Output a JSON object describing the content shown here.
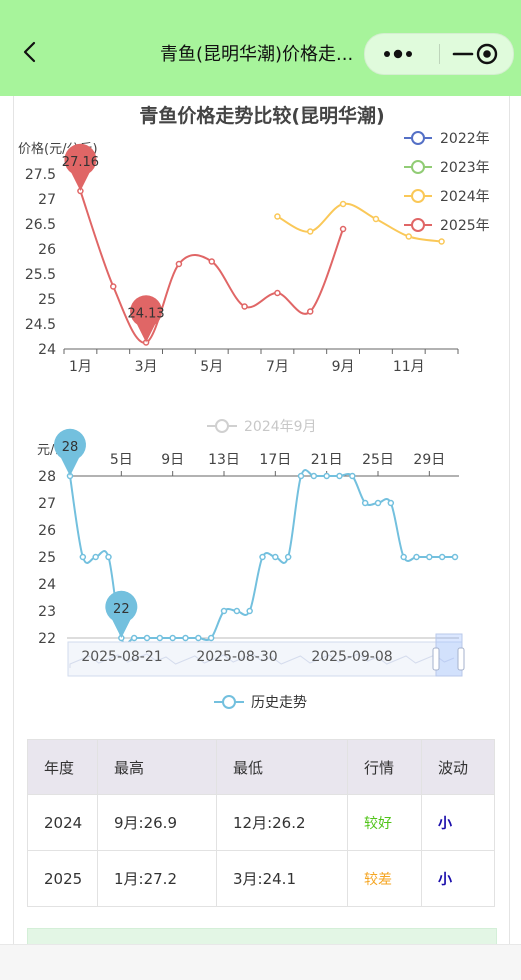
{
  "nav": {
    "title": "青鱼(昆明华潮)价格走...",
    "icons": [
      "back-arrow-icon",
      "more-dots-icon",
      "minimize-icon",
      "close-target-icon"
    ]
  },
  "colors": {
    "y2022": "#5470c6",
    "y2023": "#91cc75",
    "y2024": "#fac858",
    "y2025": "#e06666",
    "history": "#73c0de",
    "good": "#52c41a",
    "bad": "#f5a623",
    "small": "#1a0dab"
  },
  "chart_data": [
    {
      "type": "line",
      "title": "青鱼价格走势比较(昆明华潮)",
      "ylabel": "价格(元/公斤)",
      "ylim": [
        24,
        27.5
      ],
      "yticks": [
        "27.5",
        "27",
        "26.5",
        "26",
        "25.5",
        "25",
        "24.5",
        "24"
      ],
      "x": [
        1,
        2,
        3,
        4,
        5,
        6,
        7,
        8,
        9,
        10,
        11,
        12
      ],
      "xtick_labels": [
        "1月",
        "3月",
        "5月",
        "7月",
        "9月",
        "11月"
      ],
      "legend_position": "top-right",
      "series": [
        {
          "name": "2022年",
          "values": [
            null,
            null,
            null,
            null,
            null,
            null,
            null,
            null,
            null,
            null,
            null,
            null
          ]
        },
        {
          "name": "2023年",
          "values": [
            null,
            null,
            null,
            null,
            null,
            null,
            null,
            null,
            null,
            null,
            null,
            null
          ]
        },
        {
          "name": "2024年",
          "values": [
            null,
            null,
            null,
            null,
            null,
            null,
            26.65,
            26.35,
            26.9,
            26.6,
            26.25,
            26.15
          ]
        },
        {
          "name": "2025年",
          "values": [
            27.16,
            25.25,
            24.13,
            25.7,
            25.75,
            24.85,
            25.12,
            24.75,
            26.4,
            null,
            null,
            null
          ]
        }
      ],
      "markers": [
        {
          "label": "27.16",
          "x": 1,
          "value": 27.16
        },
        {
          "label": "24.13",
          "x": 3,
          "value": 24.13
        }
      ]
    },
    {
      "type": "line",
      "legend_top": "2024年9月",
      "ylabel": "元/公斤",
      "ylim": [
        22,
        28
      ],
      "yticks": [
        "28",
        "27",
        "26",
        "25",
        "24",
        "23",
        "22"
      ],
      "xtick_labels": [
        "5日",
        "9日",
        "13日",
        "17日",
        "21日",
        "25日",
        "29日"
      ],
      "slider_labels": [
        "2025-08-21",
        "2025-08-30",
        "2025-09-08"
      ],
      "series": [
        {
          "name": "历史走势",
          "values": [
            28,
            25,
            25,
            25,
            22,
            22,
            22,
            22,
            22,
            22,
            22,
            22,
            23,
            23,
            23,
            25,
            25,
            25,
            28,
            28,
            28,
            28,
            28,
            27,
            27,
            27,
            25,
            25,
            25,
            25,
            25
          ]
        }
      ],
      "markers": [
        {
          "label": "28",
          "index": 0,
          "value": 28
        },
        {
          "label": "22",
          "index": 4,
          "value": 22
        }
      ]
    }
  ],
  "table": {
    "headers": [
      "年度",
      "最高",
      "最低",
      "行情",
      "波动"
    ],
    "rows": [
      {
        "year": "2024",
        "high": "9月:26.9",
        "low": "12月:26.2",
        "trend": "较好",
        "vol": "小"
      },
      {
        "year": "2025",
        "high": "1月:27.2",
        "low": "3月:24.1",
        "trend": "较差",
        "vol": "小"
      }
    ]
  }
}
